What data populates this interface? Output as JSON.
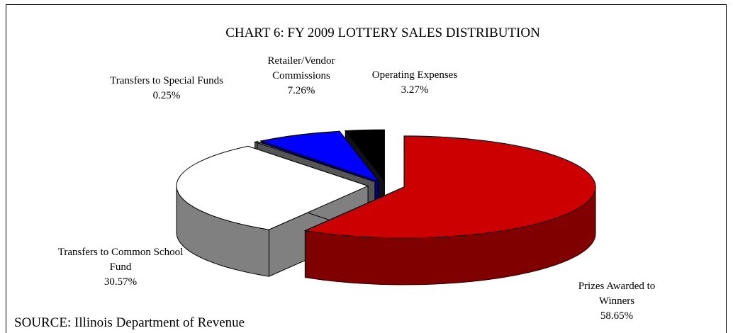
{
  "chart_data": {
    "type": "pie3d",
    "title": "CHART 6:  FY 2009 LOTTERY SALES DISTRIBUTION",
    "source": "SOURCE: Illinois Department of Revenue",
    "categories": [
      "Prizes Awarded to Winners",
      "Transfers to Common School Fund",
      "Transfers to Special Funds",
      "Retailer/Vendor Commissions",
      "Operating Expenses"
    ],
    "values": [
      58.65,
      30.57,
      0.25,
      7.26,
      3.27
    ],
    "value_labels": [
      "58.65%",
      "30.57%",
      "0.25%",
      "7.26%",
      "3.27%"
    ],
    "colors": [
      "#cc0000",
      "#ffffff",
      "#808080",
      "#0000ff",
      "#000000"
    ],
    "side_colors": [
      "#800000",
      "#808080",
      "#555555",
      "#000080",
      "#111111"
    ]
  }
}
